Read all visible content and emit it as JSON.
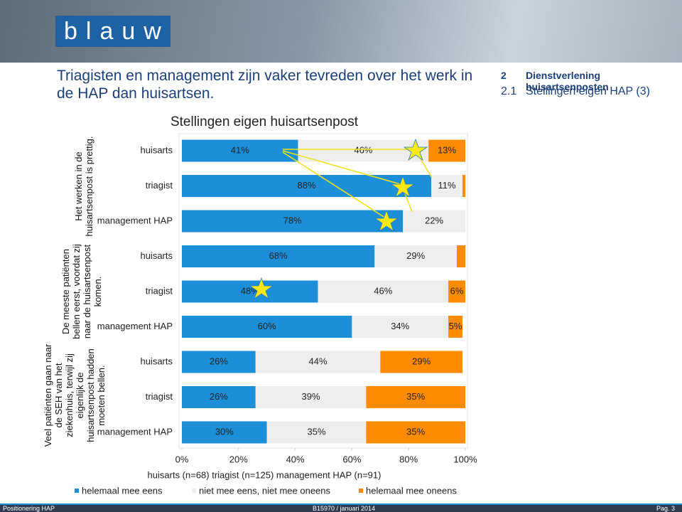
{
  "slide": {
    "logo": "blauw",
    "headline": "Triagisten en management zijn vaker tevreden over het werk in de HAP dan huisartsen.",
    "section_number": "2",
    "section_title": "Dienstverlening huisartsenposten",
    "subsection_number": "2.1",
    "subsection_title": "Stellingen eigen HAP (3)",
    "footer_left": "Positionering HAP",
    "footer_center": "B15970 / januari 2014",
    "footer_right": "Pag. 3"
  },
  "chart_data": {
    "type": "stacked-bar-horizontal",
    "title": "Stellingen eigen huisartsenpost",
    "note": "huisarts (n=68) triagist (n=125) management HAP (n=91)",
    "groups": [
      {
        "label": "Het werken in de huisartsenpost is prettig.",
        "categories": [
          "huisarts",
          "triagist",
          "management HAP"
        ]
      },
      {
        "label": "De meeste patiënten bellen eerst, voordat zij naar de huisartsenpost komen.",
        "categories": [
          "huisarts",
          "triagist",
          "management HAP"
        ]
      },
      {
        "label": "Veel patiënten gaan naar de SEH van het ziekenhuis, terwijl zij eigenlijk de huisartsenpost hadden moeten bellen.",
        "categories": [
          "huisarts",
          "triagist",
          "management HAP"
        ]
      }
    ],
    "series": [
      {
        "name": "helemaal mee eens",
        "color": "#1c8fd8",
        "values": [
          41,
          88,
          78,
          68,
          48,
          60,
          26,
          26,
          30
        ],
        "value_labels": [
          "41%",
          "88%",
          "78%",
          "68%",
          "48%",
          "60%",
          "26%",
          "26%",
          "30%"
        ]
      },
      {
        "name": "niet mee eens, niet mee oneens",
        "color": "#eeeeee",
        "values": [
          46,
          11,
          22,
          29,
          46,
          34,
          44,
          39,
          35
        ],
        "value_labels": [
          "46%",
          "11%",
          "22%",
          "29%",
          "46%",
          "34%",
          "44%",
          "39%",
          "35%"
        ]
      },
      {
        "name": "helemaal mee oneens",
        "color": "#ff8c00",
        "values": [
          13,
          1,
          0,
          3,
          6,
          5,
          29,
          35,
          35
        ],
        "value_labels": [
          "13%",
          null,
          null,
          null,
          "6%",
          "5%",
          "29%",
          "35%",
          "35%"
        ]
      }
    ],
    "xlim": [
      0,
      100
    ],
    "xticks": [
      {
        "value": 0,
        "label": "0%"
      },
      {
        "value": 20,
        "label": "20%"
      },
      {
        "value": 40,
        "label": "40%"
      },
      {
        "value": 60,
        "label": "60%"
      },
      {
        "value": 80,
        "label": "80%"
      },
      {
        "value": 100,
        "label": "100%"
      }
    ]
  }
}
